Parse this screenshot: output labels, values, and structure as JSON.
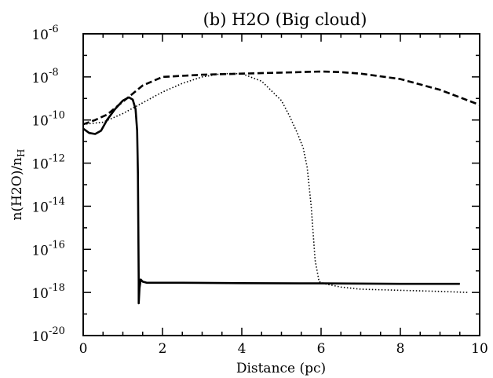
{
  "chart_data": {
    "type": "line",
    "title": "(b) H2O (Big cloud)",
    "xlabel": "Distance (pc)",
    "ylabel": "n(H2O)/n",
    "ylabel_sub": "H",
    "x_range": [
      0,
      10
    ],
    "y_log_range": [
      -20,
      -6
    ],
    "y_scale": "log",
    "grid": false,
    "legend": "none",
    "x_ticks": [
      "0",
      "2",
      "4",
      "6",
      "8",
      "10"
    ],
    "y_ticks": [
      {
        "base": "10",
        "exp": "-6",
        "log": -6
      },
      {
        "base": "10",
        "exp": "-8",
        "log": -8
      },
      {
        "base": "10",
        "exp": "-10",
        "log": -10
      },
      {
        "base": "10",
        "exp": "-12",
        "log": -12
      },
      {
        "base": "10",
        "exp": "-14",
        "log": -14
      },
      {
        "base": "10",
        "exp": "-16",
        "log": -16
      },
      {
        "base": "10",
        "exp": "-18",
        "log": -18
      },
      {
        "base": "10",
        "exp": "-20",
        "log": -20
      }
    ],
    "series": [
      {
        "style": "solid",
        "x": [
          0,
          0.15,
          0.3,
          0.45,
          0.6,
          0.8,
          1.0,
          1.15,
          1.25,
          1.32,
          1.36,
          1.38,
          1.39,
          1.4,
          1.4,
          1.42,
          1.45,
          1.5,
          1.6,
          1.8,
          2.5,
          4,
          6,
          8,
          9.5
        ],
        "y": [
          -10.4,
          -10.6,
          -10.65,
          -10.5,
          -10.0,
          -9.5,
          -9.1,
          -8.95,
          -9.05,
          -9.5,
          -10.5,
          -12.5,
          -15,
          -17.5,
          -18.5,
          -17.8,
          -17.4,
          -17.5,
          -17.55,
          -17.55,
          -17.55,
          -17.57,
          -17.58,
          -17.6,
          -17.6
        ]
      },
      {
        "style": "dashed",
        "x": [
          0,
          0.3,
          0.6,
          0.9,
          1.2,
          1.5,
          2.0,
          2.5,
          3.0,
          4.0,
          5.0,
          6.0,
          6.5,
          7.0,
          8.0,
          9.0,
          9.5,
          10.0
        ],
        "y": [
          -10.2,
          -10.0,
          -9.75,
          -9.3,
          -8.85,
          -8.4,
          -8.0,
          -7.95,
          -7.9,
          -7.85,
          -7.8,
          -7.75,
          -7.78,
          -7.85,
          -8.1,
          -8.6,
          -8.95,
          -9.3
        ]
      },
      {
        "style": "dotted",
        "x": [
          0,
          0.5,
          1.0,
          1.5,
          2.0,
          2.5,
          3.0,
          3.5,
          4.0,
          4.5,
          5.0,
          5.2,
          5.4,
          5.55,
          5.65,
          5.75,
          5.85,
          5.95,
          6.1,
          6.5,
          7.0,
          8.0,
          9.0,
          9.7
        ],
        "y": [
          -10.2,
          -10.1,
          -9.7,
          -9.2,
          -8.7,
          -8.3,
          -8.0,
          -7.85,
          -7.85,
          -8.2,
          -9.1,
          -9.8,
          -10.6,
          -11.3,
          -12.2,
          -14.0,
          -16.5,
          -17.5,
          -17.6,
          -17.75,
          -17.85,
          -17.9,
          -17.95,
          -18.0
        ]
      }
    ]
  }
}
